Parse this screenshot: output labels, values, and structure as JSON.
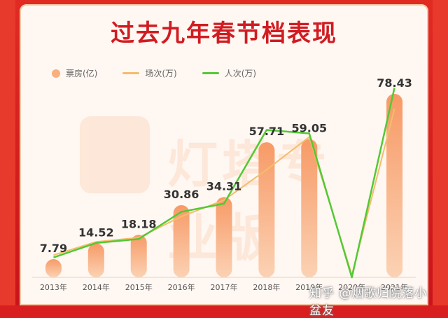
{
  "chart_data": {
    "type": "bar",
    "title": "过去九年春节档表现",
    "categories": [
      "2013年",
      "2014年",
      "2015年",
      "2016年",
      "2017年",
      "2018年",
      "2019年",
      "2020年",
      "2021年"
    ],
    "series": [
      {
        "name": "票房(亿)",
        "kind": "bar",
        "color": "#f7a97a",
        "values": [
          7.79,
          14.52,
          18.18,
          30.86,
          34.31,
          57.71,
          59.05,
          0,
          78.43
        ]
      },
      {
        "name": "场次(万)",
        "kind": "line",
        "color": "#f4bd6b",
        "values": [
          9.5,
          15.2,
          17.0,
          26.0,
          33.0,
          46.0,
          60.0,
          1.0,
          72.0
        ]
      },
      {
        "name": "人次(万)",
        "kind": "line",
        "color": "#53c935",
        "values": [
          8.5,
          14.7,
          16.4,
          28.0,
          31.5,
          63.0,
          61.5,
          0,
          81.0
        ]
      }
    ],
    "data_labels": [
      "7.79",
      "14.52",
      "18.18",
      "30.86",
      "34.31",
      "57.71",
      "59.05",
      "",
      "78.43"
    ],
    "ylim": [
      0,
      85
    ],
    "legend_position": "top-left"
  },
  "watermark": {
    "text": "灯塔专业版"
  },
  "overlay": {
    "zhihu_text": "知乎 @烟歌归院落小盆友"
  }
}
